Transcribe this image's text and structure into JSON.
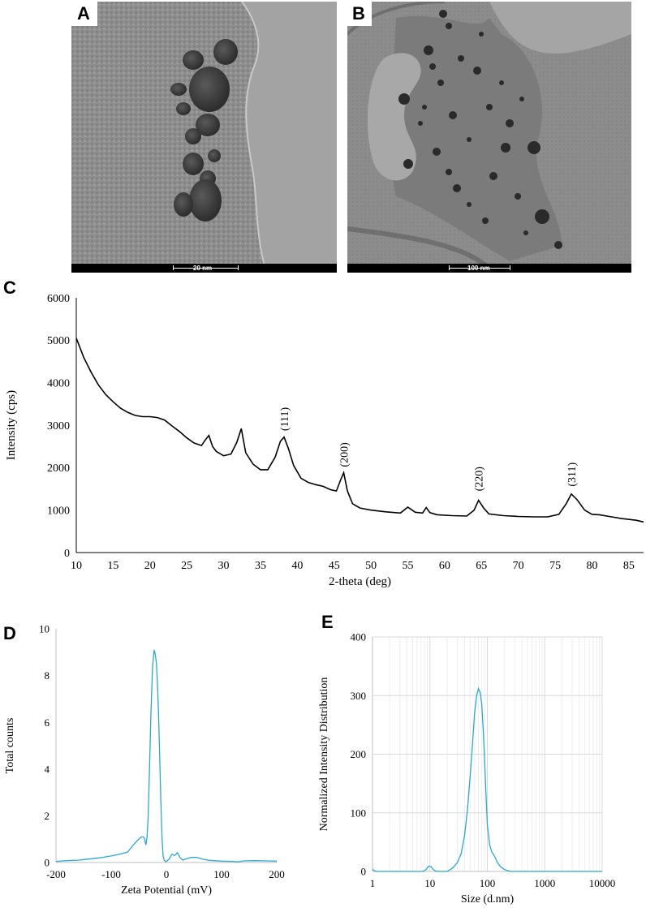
{
  "panels": {
    "a": {
      "letter": "A",
      "scale_label": "20 nm"
    },
    "b": {
      "letter": "B",
      "scale_label": "100 nm"
    },
    "c": {
      "letter": "C"
    },
    "d": {
      "letter": "D"
    },
    "e": {
      "letter": "E"
    }
  },
  "colors": {
    "xrd_line": "#000000",
    "dls_line": "#29a8d6",
    "grid": "#d9d9d9",
    "tem_a_bg": "#9a9a9a",
    "tem_b_bg": "#8f8f8f"
  },
  "chart_data": [
    {
      "id": "C",
      "type": "line",
      "xlabel": "2-theta (deg)",
      "ylabel": "Intensity (cps)",
      "xlim": [
        10,
        87
      ],
      "ylim": [
        0,
        6000
      ],
      "xticks": [
        10,
        15,
        20,
        25,
        30,
        35,
        40,
        45,
        50,
        55,
        60,
        65,
        70,
        75,
        80,
        85
      ],
      "yticks": [
        0,
        1000,
        2000,
        3000,
        4000,
        5000,
        6000
      ],
      "grid": false,
      "peak_labels": [
        {
          "text": "(111)",
          "x": 38.2,
          "y": 2750
        },
        {
          "text": "(200)",
          "x": 46.3,
          "y": 1900
        },
        {
          "text": "(220)",
          "x": 64.6,
          "y": 1330
        },
        {
          "text": "(311)",
          "x": 77.2,
          "y": 1440
        }
      ],
      "series": [
        {
          "x": [
            10,
            11,
            12,
            13,
            14,
            15,
            16,
            17,
            18,
            19,
            20,
            21,
            22,
            23,
            24,
            25,
            26,
            27,
            27.5,
            28,
            28.5,
            29,
            30,
            31,
            31.8,
            32.4,
            33,
            34,
            35,
            36,
            37,
            37.7,
            38.2,
            38.8,
            39.5,
            40.5,
            41.5,
            42.5,
            43.5,
            44.5,
            45.3,
            45.9,
            46.3,
            46.8,
            47.5,
            48.5,
            50,
            52,
            54,
            55,
            56,
            57,
            57.5,
            58,
            59,
            61,
            63,
            64,
            64.6,
            65.3,
            66,
            68,
            70,
            72,
            74,
            75.5,
            76.5,
            77.2,
            78,
            79,
            80,
            81,
            82,
            84,
            86,
            87
          ],
          "y": [
            5050,
            4600,
            4250,
            3950,
            3720,
            3550,
            3400,
            3300,
            3230,
            3200,
            3200,
            3180,
            3120,
            2980,
            2850,
            2700,
            2580,
            2520,
            2650,
            2760,
            2500,
            2380,
            2280,
            2320,
            2600,
            2920,
            2350,
            2080,
            1950,
            1950,
            2250,
            2620,
            2720,
            2450,
            2050,
            1750,
            1650,
            1600,
            1560,
            1480,
            1450,
            1720,
            1880,
            1450,
            1150,
            1050,
            1000,
            960,
            930,
            1070,
            950,
            930,
            1060,
            940,
            890,
            870,
            860,
            1000,
            1230,
            1050,
            910,
            870,
            850,
            840,
            840,
            900,
            1150,
            1380,
            1240,
            1000,
            900,
            890,
            860,
            800,
            760,
            720
          ]
        }
      ]
    },
    {
      "id": "D",
      "type": "line",
      "xlabel": "Zeta Potential (mV)",
      "ylabel": "Total counts",
      "xlim": [
        -200,
        200
      ],
      "ylim": [
        0,
        10
      ],
      "xticks": [
        -200,
        -100,
        0,
        100,
        200
      ],
      "yticks": [
        0,
        2,
        4,
        6,
        8,
        10
      ],
      "grid": false,
      "series": [
        {
          "x": [
            -200,
            -180,
            -160,
            -140,
            -120,
            -100,
            -85,
            -70,
            -60,
            -52,
            -46,
            -42,
            -40,
            -37,
            -35,
            -33,
            -31,
            -28,
            -25,
            -22,
            -20,
            -18,
            -16,
            -14,
            -12,
            -10,
            -8,
            -6,
            -4,
            -2,
            0,
            5,
            10,
            15,
            20,
            25,
            30,
            35,
            45,
            55,
            65,
            75,
            85,
            100,
            120,
            130,
            140,
            160,
            180,
            200
          ],
          "y": [
            0.05,
            0.08,
            0.1,
            0.15,
            0.2,
            0.28,
            0.35,
            0.45,
            0.75,
            0.95,
            1.08,
            1.1,
            1.05,
            0.75,
            1.1,
            2.0,
            3.6,
            6.4,
            8.4,
            9.1,
            8.9,
            8.5,
            7.6,
            6.2,
            4.5,
            2.6,
            1.1,
            0.3,
            0.1,
            0.05,
            0.04,
            0.15,
            0.35,
            0.3,
            0.42,
            0.2,
            0.1,
            0.15,
            0.22,
            0.22,
            0.15,
            0.1,
            0.08,
            0.06,
            0.05,
            0.03,
            0.07,
            0.08,
            0.07,
            0.06
          ]
        }
      ]
    },
    {
      "id": "E",
      "type": "line",
      "xlabel": "Size (d.nm)",
      "ylabel": "Normalized Intensity Distribution",
      "xscale": "log",
      "xlim": [
        1,
        10000
      ],
      "ylim": [
        0,
        400
      ],
      "xticks": [
        1,
        10,
        100,
        1000,
        10000
      ],
      "yticks": [
        0,
        100,
        200,
        300,
        400
      ],
      "grid": true,
      "series": [
        {
          "x": [
            1,
            1.05,
            1.15,
            2,
            5,
            7.5,
            8.5,
            9.5,
            10.5,
            11.5,
            13,
            20,
            25,
            30,
            35,
            40,
            45,
            50,
            55,
            60,
            65,
            70,
            75,
            80,
            85,
            90,
            95,
            100,
            110,
            120,
            135,
            150,
            170,
            200,
            230,
            260,
            300,
            1000,
            10000
          ],
          "y": [
            4,
            2,
            0,
            0,
            0,
            0,
            3,
            9,
            8,
            3,
            0,
            0,
            6,
            15,
            30,
            60,
            105,
            160,
            215,
            270,
            300,
            312,
            305,
            285,
            240,
            185,
            130,
            80,
            45,
            33,
            25,
            15,
            8,
            3,
            1,
            0,
            0,
            0,
            0
          ]
        }
      ]
    }
  ]
}
